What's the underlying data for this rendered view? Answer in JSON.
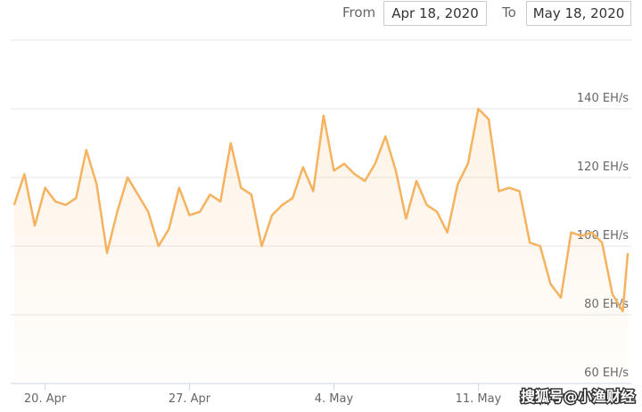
{
  "range": {
    "from_label": "From",
    "from": "Apr 18, 2020",
    "to_label": "To",
    "to": "May 18, 2020"
  },
  "watermark": "搜狐号@小渔财经",
  "chart_data": {
    "type": "area",
    "x": [
      "2020-04-18T12:00",
      "2020-04-19T00:00",
      "2020-04-19T12:00",
      "2020-04-20T00:00",
      "2020-04-20T12:00",
      "2020-04-21T00:00",
      "2020-04-21T12:00",
      "2020-04-22T00:00",
      "2020-04-22T12:00",
      "2020-04-23T00:00",
      "2020-04-23T12:00",
      "2020-04-24T00:00",
      "2020-04-24T12:00",
      "2020-04-25T00:00",
      "2020-04-25T12:00",
      "2020-04-26T00:00",
      "2020-04-26T12:00",
      "2020-04-27T00:00",
      "2020-04-27T12:00",
      "2020-04-28T00:00",
      "2020-04-28T12:00",
      "2020-04-29T00:00",
      "2020-04-29T12:00",
      "2020-04-30T00:00",
      "2020-04-30T12:00",
      "2020-05-01T00:00",
      "2020-05-01T12:00",
      "2020-05-02T00:00",
      "2020-05-02T12:00",
      "2020-05-03T00:00",
      "2020-05-03T12:00",
      "2020-05-04T00:00",
      "2020-05-04T12:00",
      "2020-05-05T00:00",
      "2020-05-05T12:00",
      "2020-05-06T00:00",
      "2020-05-06T12:00",
      "2020-05-07T00:00",
      "2020-05-07T12:00",
      "2020-05-08T00:00",
      "2020-05-08T12:00",
      "2020-05-09T00:00",
      "2020-05-09T12:00",
      "2020-05-10T00:00",
      "2020-05-10T12:00",
      "2020-05-11T00:00",
      "2020-05-11T12:00",
      "2020-05-12T00:00",
      "2020-05-12T12:00",
      "2020-05-13T00:00",
      "2020-05-13T12:00",
      "2020-05-14T00:00",
      "2020-05-14T12:00",
      "2020-05-15T00:00",
      "2020-05-15T12:00",
      "2020-05-16T00:00",
      "2020-05-16T12:00",
      "2020-05-17T00:00",
      "2020-05-17T12:00",
      "2020-05-18T00:00",
      "2020-05-18T06:00"
    ],
    "values": [
      112,
      121,
      106,
      117,
      113,
      112,
      114,
      128,
      118,
      98,
      110,
      120,
      115,
      110,
      100,
      105,
      117,
      109,
      110,
      115,
      113,
      130,
      117,
      115,
      100,
      109,
      112,
      114,
      123,
      116,
      138,
      122,
      124,
      121,
      119,
      124,
      132,
      122,
      108,
      119,
      112,
      110,
      104,
      118,
      124,
      140,
      137,
      116,
      117,
      116,
      101,
      100,
      89,
      85,
      104,
      103,
      104,
      101,
      86,
      81,
      98
    ],
    "color": "#f5b25f",
    "xlim": [
      "2020-04-18T08:00",
      "2020-05-18T10:00"
    ],
    "xticks": [
      {
        "value": "2020-04-20T00:00",
        "label": "20. Apr"
      },
      {
        "value": "2020-04-27T00:00",
        "label": "27. Apr"
      },
      {
        "value": "2020-05-04T00:00",
        "label": "4. May"
      },
      {
        "value": "2020-05-11T00:00",
        "label": "11. May"
      }
    ],
    "ylim": [
      60,
      160
    ],
    "yticks": [
      {
        "value": 60,
        "label": "60 EH/s"
      },
      {
        "value": 80,
        "label": "80 EH/s"
      },
      {
        "value": 100,
        "label": "100 EH/s"
      },
      {
        "value": 120,
        "label": "120 EH/s"
      },
      {
        "value": 140,
        "label": "140 EH/s"
      }
    ],
    "grid": true
  }
}
